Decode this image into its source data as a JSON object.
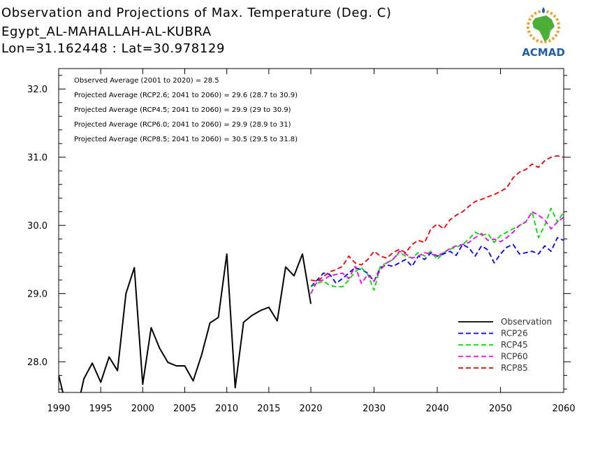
{
  "title": {
    "line1": "Observation and Projections of Max. Temperature (Deg. C)",
    "line2": "Egypt_AL-MAHALLAH-AL-KUBRA",
    "line3": "Lon=31.162448 : Lat=30.978129"
  },
  "logo": {
    "text": "ACMAD",
    "colors": {
      "africa": "#4caf3a",
      "text": "#1f5fa8",
      "sun": "#f0a020"
    }
  },
  "annotations": [
    "Observed Average (2001 to 2020) = 28.5",
    "Projected Average (RCP2.6; 2041 to 2060) = 29.6 (28.7 to 30.9)",
    "Projected Average (RCP4.5; 2041 to 2060) = 29.9 (29 to 30.9)",
    "Projected Average (RCP6.0; 2041 to 2060) = 29.9 (28.9 to 31)",
    "Projected Average (RCP8.5; 2041 to 2060) = 30.5 (29.5 to 31.8)"
  ],
  "chart_data": {
    "type": "line",
    "xlim": [
      1990,
      2060
    ],
    "ylim": [
      27.55,
      32.3
    ],
    "x_ticks": [
      1990,
      1995,
      2000,
      2005,
      2010,
      2015,
      2020,
      2030,
      2040,
      2050,
      2060
    ],
    "y_ticks": [
      28.0,
      29.0,
      30.0,
      31.0,
      32.0
    ],
    "y_tick_labels": [
      "28.0",
      "29.0",
      "30.0",
      "31.0",
      "32.0"
    ],
    "legend_position": "bottom-right",
    "series": [
      {
        "name": "Observation",
        "color": "#000000",
        "dash": "solid",
        "x": [
          1990,
          1991,
          1992,
          1993,
          1994,
          1995,
          1996,
          1997,
          1998,
          1999,
          2000,
          2001,
          2002,
          2003,
          2004,
          2005,
          2006,
          2007,
          2008,
          2009,
          2010,
          2011,
          2012,
          2013,
          2014,
          2015,
          2016,
          2017,
          2018,
          2019,
          2020
        ],
        "y": [
          27.8,
          27.3,
          27.2,
          27.75,
          27.98,
          27.7,
          28.07,
          27.87,
          29.0,
          29.38,
          27.67,
          28.5,
          28.2,
          27.99,
          27.94,
          27.94,
          27.72,
          28.1,
          28.57,
          28.65,
          29.58,
          27.62,
          28.58,
          28.68,
          28.75,
          28.8,
          28.6,
          29.39,
          29.26,
          29.58,
          28.85
        ]
      },
      {
        "name": "RCP26",
        "color": "#0000ee",
        "dash": "dashed",
        "x": [
          2020,
          2021,
          2022,
          2023,
          2024,
          2025,
          2026,
          2027,
          2028,
          2029,
          2030,
          2031,
          2032,
          2033,
          2034,
          2035,
          2036,
          2037,
          2038,
          2039,
          2040,
          2041,
          2042,
          2043,
          2044,
          2045,
          2046,
          2047,
          2048,
          2049,
          2050,
          2051,
          2052,
          2053,
          2054,
          2055,
          2056,
          2057,
          2058,
          2059,
          2060
        ],
        "y": [
          29.1,
          29.2,
          29.3,
          29.28,
          29.15,
          29.22,
          29.3,
          29.38,
          29.35,
          29.3,
          29.18,
          29.38,
          29.42,
          29.4,
          29.45,
          29.5,
          29.4,
          29.55,
          29.5,
          29.6,
          29.55,
          29.58,
          29.62,
          29.56,
          29.72,
          29.67,
          29.55,
          29.7,
          29.64,
          29.45,
          29.58,
          29.68,
          29.72,
          29.58,
          29.6,
          29.62,
          29.58,
          29.7,
          29.62,
          29.82,
          29.78
        ]
      },
      {
        "name": "RCP45",
        "color": "#00dd00",
        "dash": "dashed",
        "x": [
          2020,
          2021,
          2022,
          2023,
          2024,
          2025,
          2026,
          2027,
          2028,
          2029,
          2030,
          2031,
          2032,
          2033,
          2034,
          2035,
          2036,
          2037,
          2038,
          2039,
          2040,
          2041,
          2042,
          2043,
          2044,
          2045,
          2046,
          2047,
          2048,
          2049,
          2050,
          2051,
          2052,
          2053,
          2054,
          2055,
          2056,
          2057,
          2058,
          2059,
          2060
        ],
        "y": [
          29.1,
          29.15,
          29.18,
          29.12,
          29.1,
          29.1,
          29.2,
          29.32,
          29.38,
          29.28,
          29.05,
          29.4,
          29.45,
          29.5,
          29.6,
          29.55,
          29.52,
          29.6,
          29.55,
          29.62,
          29.5,
          29.6,
          29.65,
          29.68,
          29.72,
          29.8,
          29.9,
          29.85,
          29.88,
          29.75,
          29.85,
          29.9,
          29.95,
          30.0,
          30.05,
          30.2,
          29.82,
          30.0,
          30.25,
          30.05,
          30.2
        ]
      },
      {
        "name": "RCP60",
        "color": "#ee00ee",
        "dash": "dashed",
        "x": [
          2020,
          2021,
          2022,
          2023,
          2024,
          2025,
          2026,
          2027,
          2028,
          2029,
          2030,
          2031,
          2032,
          2033,
          2034,
          2035,
          2036,
          2037,
          2038,
          2039,
          2040,
          2041,
          2042,
          2043,
          2044,
          2045,
          2046,
          2047,
          2048,
          2049,
          2050,
          2051,
          2052,
          2053,
          2054,
          2055,
          2056,
          2057,
          2058,
          2059,
          2060
        ],
        "y": [
          29.0,
          29.18,
          29.2,
          29.26,
          29.28,
          29.3,
          29.22,
          29.4,
          29.15,
          29.28,
          29.18,
          29.35,
          29.45,
          29.5,
          29.62,
          29.58,
          29.52,
          29.55,
          29.6,
          29.58,
          29.55,
          29.6,
          29.66,
          29.7,
          29.72,
          29.75,
          29.82,
          29.88,
          29.78,
          29.8,
          29.76,
          29.82,
          29.9,
          30.0,
          30.05,
          30.2,
          30.15,
          30.08,
          29.95,
          30.05,
          30.12
        ]
      },
      {
        "name": "RCP85",
        "color": "#ee0000",
        "dash": "dashed",
        "x": [
          2020,
          2021,
          2022,
          2023,
          2024,
          2025,
          2026,
          2027,
          2028,
          2029,
          2030,
          2031,
          2032,
          2033,
          2034,
          2035,
          2036,
          2037,
          2038,
          2039,
          2040,
          2041,
          2042,
          2043,
          2044,
          2045,
          2046,
          2047,
          2048,
          2049,
          2050,
          2051,
          2052,
          2053,
          2054,
          2055,
          2056,
          2057,
          2058,
          2059,
          2060
        ],
        "y": [
          29.2,
          29.18,
          29.25,
          29.32,
          29.35,
          29.4,
          29.55,
          29.45,
          29.42,
          29.5,
          29.62,
          29.55,
          29.52,
          29.6,
          29.65,
          29.6,
          29.72,
          29.78,
          29.75,
          29.95,
          30.02,
          29.95,
          30.08,
          30.15,
          30.2,
          30.28,
          30.35,
          30.38,
          30.42,
          30.45,
          30.5,
          30.55,
          30.7,
          30.78,
          30.82,
          30.9,
          30.85,
          30.95,
          31.0,
          31.02,
          31.0
        ]
      }
    ]
  }
}
